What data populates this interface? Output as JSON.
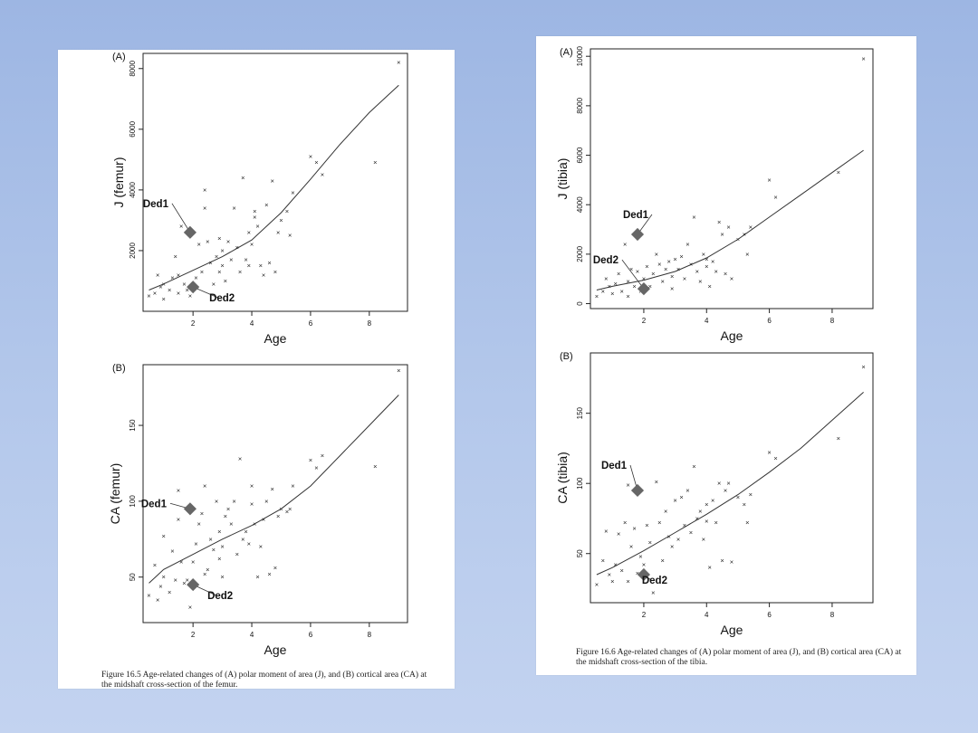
{
  "left_figure": {
    "caption": "Figure 16.5   Age-related changes of (A) polar moment of area (J), and (B) cortical area (CA) at the midshaft cross-section of the femur."
  },
  "right_figure": {
    "caption": "Figure 16.6   Age-related changes of (A) polar moment of area (J), and (B) cortical area (CA) at the midshaft cross-section of the tibia."
  },
  "chart_data": [
    {
      "id": "femur_J",
      "type": "scatter",
      "panel_label": "(A)",
      "xlabel": "Age",
      "ylabel": "J (femur)",
      "xlim": [
        0.3,
        9.3
      ],
      "ylim": [
        0,
        8500
      ],
      "xticks": [
        2,
        4,
        6,
        8
      ],
      "yticks": [
        2000,
        4000,
        6000,
        8000
      ],
      "points": [
        [
          0.5,
          500
        ],
        [
          0.7,
          600
        ],
        [
          0.8,
          1200
        ],
        [
          0.9,
          800
        ],
        [
          1.0,
          400
        ],
        [
          1.0,
          900
        ],
        [
          1.2,
          700
        ],
        [
          1.3,
          1100
        ],
        [
          1.4,
          1800
        ],
        [
          1.5,
          600
        ],
        [
          1.5,
          1200
        ],
        [
          1.6,
          2800
        ],
        [
          1.7,
          900
        ],
        [
          1.8,
          700
        ],
        [
          1.9,
          500
        ],
        [
          1.9,
          2600
        ],
        [
          2.0,
          800
        ],
        [
          2.1,
          1100
        ],
        [
          2.2,
          2200
        ],
        [
          2.3,
          1300
        ],
        [
          2.4,
          3400
        ],
        [
          2.4,
          4000
        ],
        [
          2.5,
          2300
        ],
        [
          2.6,
          1600
        ],
        [
          2.7,
          900
        ],
        [
          2.8,
          1800
        ],
        [
          2.9,
          1300
        ],
        [
          2.9,
          2400
        ],
        [
          3.0,
          2000
        ],
        [
          3.0,
          1500
        ],
        [
          3.1,
          1000
        ],
        [
          3.2,
          2300
        ],
        [
          3.3,
          1700
        ],
        [
          3.4,
          3400
        ],
        [
          3.5,
          2100
        ],
        [
          3.6,
          1300
        ],
        [
          3.7,
          4400
        ],
        [
          3.8,
          1700
        ],
        [
          3.9,
          1500
        ],
        [
          3.9,
          2600
        ],
        [
          4.0,
          2200
        ],
        [
          4.1,
          3300
        ],
        [
          4.1,
          3100
        ],
        [
          4.2,
          2800
        ],
        [
          4.3,
          1500
        ],
        [
          4.4,
          1200
        ],
        [
          4.5,
          3500
        ],
        [
          4.6,
          1600
        ],
        [
          4.7,
          4300
        ],
        [
          4.8,
          1300
        ],
        [
          4.9,
          2600
        ],
        [
          5.0,
          3000
        ],
        [
          5.2,
          3300
        ],
        [
          5.3,
          2500
        ],
        [
          5.4,
          3900
        ],
        [
          6.0,
          5100
        ],
        [
          6.2,
          4900
        ],
        [
          6.4,
          4500
        ],
        [
          8.2,
          4900
        ],
        [
          9.0,
          8200
        ]
      ],
      "trend": [
        [
          0.5,
          700
        ],
        [
          1,
          900
        ],
        [
          2,
          1350
        ],
        [
          3,
          1800
        ],
        [
          4,
          2350
        ],
        [
          5,
          3250
        ],
        [
          6,
          4350
        ],
        [
          7,
          5500
        ],
        [
          8,
          6550
        ],
        [
          9,
          7450
        ]
      ],
      "annotations": [
        {
          "label": "Ded1",
          "x": 1.9,
          "y": 2600
        },
        {
          "label": "Ded2",
          "x": 2.0,
          "y": 800
        }
      ]
    },
    {
      "id": "femur_CA",
      "type": "scatter",
      "panel_label": "(B)",
      "xlabel": "Age",
      "ylabel": "CA (femur)",
      "xlim": [
        0.3,
        9.3
      ],
      "ylim": [
        20,
        190
      ],
      "xticks": [
        2,
        4,
        6,
        8
      ],
      "yticks": [
        50,
        100,
        150
      ],
      "points": [
        [
          0.5,
          38
        ],
        [
          0.7,
          58
        ],
        [
          0.8,
          35
        ],
        [
          0.9,
          44
        ],
        [
          1.0,
          77
        ],
        [
          1.0,
          50
        ],
        [
          1.2,
          40
        ],
        [
          1.3,
          67
        ],
        [
          1.4,
          48
        ],
        [
          1.5,
          88
        ],
        [
          1.5,
          107
        ],
        [
          1.6,
          60
        ],
        [
          1.7,
          46
        ],
        [
          1.8,
          48
        ],
        [
          1.9,
          30
        ],
        [
          2.0,
          60
        ],
        [
          2.1,
          72
        ],
        [
          2.2,
          85
        ],
        [
          2.3,
          92
        ],
        [
          2.4,
          110
        ],
        [
          2.4,
          52
        ],
        [
          2.5,
          55
        ],
        [
          2.6,
          75
        ],
        [
          2.7,
          68
        ],
        [
          2.8,
          100
        ],
        [
          2.9,
          80
        ],
        [
          2.9,
          62
        ],
        [
          3.0,
          70
        ],
        [
          3.0,
          50
        ],
        [
          3.1,
          90
        ],
        [
          3.2,
          95
        ],
        [
          3.3,
          85
        ],
        [
          3.4,
          100
        ],
        [
          3.5,
          65
        ],
        [
          3.6,
          128
        ],
        [
          3.7,
          75
        ],
        [
          3.8,
          80
        ],
        [
          3.9,
          72
        ],
        [
          4.0,
          98
        ],
        [
          4.0,
          110
        ],
        [
          4.1,
          85
        ],
        [
          4.2,
          50
        ],
        [
          4.3,
          70
        ],
        [
          4.4,
          88
        ],
        [
          4.5,
          100
        ],
        [
          4.6,
          52
        ],
        [
          4.7,
          108
        ],
        [
          4.8,
          56
        ],
        [
          4.9,
          90
        ],
        [
          5.0,
          95
        ],
        [
          5.2,
          93
        ],
        [
          5.3,
          95
        ],
        [
          5.4,
          110
        ],
        [
          6.0,
          127
        ],
        [
          6.2,
          122
        ],
        [
          6.4,
          130
        ],
        [
          8.2,
          123
        ],
        [
          9.0,
          186
        ]
      ],
      "trend": [
        [
          0.5,
          46
        ],
        [
          1,
          55
        ],
        [
          2,
          65
        ],
        [
          3,
          75
        ],
        [
          4,
          84
        ],
        [
          5,
          95
        ],
        [
          6,
          110
        ],
        [
          7,
          130
        ],
        [
          8,
          150
        ],
        [
          9,
          170
        ]
      ],
      "annotations": [
        {
          "label": "Ded1",
          "x": 1.9,
          "y": 95
        },
        {
          "label": "Ded2",
          "x": 2.0,
          "y": 45
        }
      ]
    },
    {
      "id": "tibia_J",
      "type": "scatter",
      "panel_label": "(A)",
      "xlabel": "Age",
      "ylabel": "J (tibia)",
      "xlim": [
        0.3,
        9.3
      ],
      "ylim": [
        -200,
        10300
      ],
      "xticks": [
        2,
        4,
        6,
        8
      ],
      "yticks": [
        0,
        2000,
        4000,
        6000,
        8000,
        10000
      ],
      "points": [
        [
          0.5,
          300
        ],
        [
          0.7,
          500
        ],
        [
          0.8,
          1000
        ],
        [
          0.9,
          700
        ],
        [
          1.0,
          400
        ],
        [
          1.1,
          800
        ],
        [
          1.2,
          1200
        ],
        [
          1.3,
          500
        ],
        [
          1.4,
          2400
        ],
        [
          1.5,
          900
        ],
        [
          1.5,
          300
        ],
        [
          1.6,
          1400
        ],
        [
          1.7,
          700
        ],
        [
          1.8,
          1300
        ],
        [
          1.9,
          500
        ],
        [
          2.0,
          1000
        ],
        [
          2.1,
          1500
        ],
        [
          2.2,
          700
        ],
        [
          2.3,
          1200
        ],
        [
          2.4,
          2000
        ],
        [
          2.5,
          1600
        ],
        [
          2.6,
          900
        ],
        [
          2.7,
          1400
        ],
        [
          2.8,
          1700
        ],
        [
          2.9,
          1100
        ],
        [
          2.9,
          600
        ],
        [
          3.0,
          1800
        ],
        [
          3.1,
          1400
        ],
        [
          3.2,
          1900
        ],
        [
          3.3,
          1000
        ],
        [
          3.4,
          2400
        ],
        [
          3.5,
          1600
        ],
        [
          3.6,
          3500
        ],
        [
          3.7,
          1300
        ],
        [
          3.8,
          900
        ],
        [
          3.9,
          2000
        ],
        [
          4.0,
          1500
        ],
        [
          4.0,
          1800
        ],
        [
          4.1,
          700
        ],
        [
          4.2,
          1700
        ],
        [
          4.3,
          1300
        ],
        [
          4.4,
          3300
        ],
        [
          4.5,
          2800
        ],
        [
          4.6,
          1200
        ],
        [
          4.7,
          3100
        ],
        [
          4.8,
          1000
        ],
        [
          5.0,
          2600
        ],
        [
          5.2,
          2800
        ],
        [
          5.3,
          2000
        ],
        [
          5.4,
          3100
        ],
        [
          6.0,
          5000
        ],
        [
          6.2,
          4300
        ],
        [
          8.2,
          5300
        ],
        [
          9.0,
          9900
        ]
      ],
      "trend": [
        [
          0.5,
          550
        ],
        [
          1,
          700
        ],
        [
          2,
          950
        ],
        [
          3,
          1300
        ],
        [
          4,
          1850
        ],
        [
          5,
          2600
        ],
        [
          6,
          3500
        ],
        [
          7,
          4400
        ],
        [
          8,
          5300
        ],
        [
          9,
          6200
        ]
      ],
      "annotations": [
        {
          "label": "Ded1",
          "x": 1.8,
          "y": 2800
        },
        {
          "label": "Ded2",
          "x": 2.0,
          "y": 600
        }
      ]
    },
    {
      "id": "tibia_CA",
      "type": "scatter",
      "panel_label": "(B)",
      "xlabel": "Age",
      "ylabel": "CA (tibia)",
      "xlim": [
        0.3,
        9.3
      ],
      "ylim": [
        15,
        193
      ],
      "xticks": [
        2,
        4,
        6,
        8
      ],
      "yticks": [
        50,
        100,
        150
      ],
      "points": [
        [
          0.5,
          28
        ],
        [
          0.7,
          45
        ],
        [
          0.8,
          66
        ],
        [
          0.9,
          35
        ],
        [
          1.0,
          30
        ],
        [
          1.1,
          42
        ],
        [
          1.2,
          64
        ],
        [
          1.3,
          38
        ],
        [
          1.4,
          72
        ],
        [
          1.5,
          99
        ],
        [
          1.5,
          30
        ],
        [
          1.6,
          55
        ],
        [
          1.7,
          68
        ],
        [
          1.8,
          36
        ],
        [
          1.9,
          48
        ],
        [
          2.0,
          42
        ],
        [
          2.1,
          70
        ],
        [
          2.2,
          58
        ],
        [
          2.3,
          22
        ],
        [
          2.4,
          101
        ],
        [
          2.5,
          72
        ],
        [
          2.6,
          45
        ],
        [
          2.7,
          80
        ],
        [
          2.8,
          62
        ],
        [
          2.9,
          55
        ],
        [
          3.0,
          88
        ],
        [
          3.1,
          60
        ],
        [
          3.2,
          90
        ],
        [
          3.3,
          70
        ],
        [
          3.4,
          95
        ],
        [
          3.5,
          65
        ],
        [
          3.6,
          112
        ],
        [
          3.7,
          75
        ],
        [
          3.8,
          80
        ],
        [
          3.9,
          60
        ],
        [
          4.0,
          85
        ],
        [
          4.0,
          73
        ],
        [
          4.1,
          40
        ],
        [
          4.2,
          88
        ],
        [
          4.3,
          72
        ],
        [
          4.4,
          100
        ],
        [
          4.5,
          45
        ],
        [
          4.6,
          95
        ],
        [
          4.7,
          100
        ],
        [
          4.8,
          44
        ],
        [
          5.0,
          90
        ],
        [
          5.2,
          85
        ],
        [
          5.3,
          72
        ],
        [
          5.4,
          92
        ],
        [
          6.0,
          122
        ],
        [
          6.2,
          118
        ],
        [
          8.2,
          132
        ],
        [
          9.0,
          183
        ]
      ],
      "trend": [
        [
          0.5,
          35
        ],
        [
          1,
          40
        ],
        [
          2,
          52
        ],
        [
          3,
          65
        ],
        [
          4,
          78
        ],
        [
          5,
          92
        ],
        [
          6,
          108
        ],
        [
          7,
          125
        ],
        [
          8,
          145
        ],
        [
          9,
          165
        ]
      ],
      "annotations": [
        {
          "label": "Ded1",
          "x": 1.8,
          "y": 95
        },
        {
          "label": "Ded2",
          "x": 2.0,
          "y": 35
        }
      ]
    }
  ]
}
